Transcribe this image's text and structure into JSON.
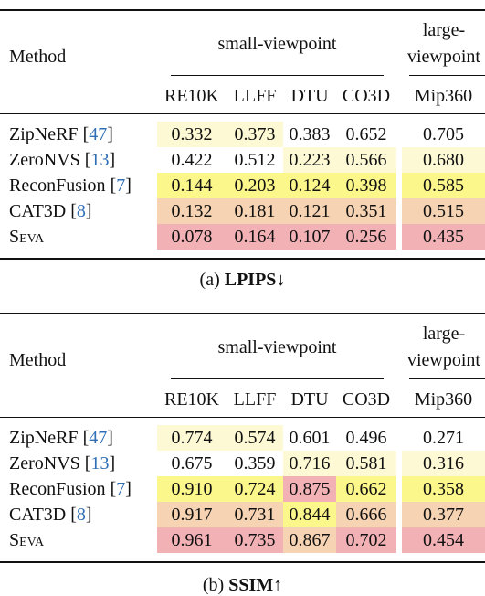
{
  "header": {
    "method": "Method",
    "group_small": "small-viewpoint",
    "group_large_1": "large-",
    "group_large_2": "viewpoint",
    "columns": [
      "RE10K",
      "LLFF",
      "DTU",
      "CO3D",
      "Mip360"
    ]
  },
  "colors": {
    "light": "#fdf9d4",
    "yellow": "#fbf78a",
    "orange": "#f6d3b2",
    "red": "#f2b1b5",
    "none": "#ffffff",
    "ref": "#2f6fb5"
  },
  "tables": [
    {
      "caption_prefix": "(a) ",
      "caption_bold": "LPIPS",
      "caption_arrow": "↓",
      "rows": [
        {
          "name": "ZipNeRF",
          "ref": "47",
          "values": [
            "0.332",
            "0.373",
            "0.383",
            "0.652",
            "0.705"
          ],
          "colors": [
            "light",
            "light",
            "none",
            "none",
            "none"
          ]
        },
        {
          "name": "ZeroNVS",
          "ref": "13",
          "values": [
            "0.422",
            "0.512",
            "0.223",
            "0.566",
            "0.680"
          ],
          "colors": [
            "none",
            "none",
            "light",
            "light",
            "light"
          ]
        },
        {
          "name": "ReconFusion",
          "ref": "7",
          "values": [
            "0.144",
            "0.203",
            "0.124",
            "0.398",
            "0.585"
          ],
          "colors": [
            "yellow",
            "yellow",
            "yellow",
            "yellow",
            "yellow"
          ]
        },
        {
          "name": "CAT3D",
          "ref": "8",
          "values": [
            "0.132",
            "0.181",
            "0.121",
            "0.351",
            "0.515"
          ],
          "colors": [
            "orange",
            "orange",
            "orange",
            "orange",
            "orange"
          ]
        },
        {
          "name": "Seva",
          "ref": "",
          "values": [
            "0.078",
            "0.164",
            "0.107",
            "0.256",
            "0.435"
          ],
          "colors": [
            "red",
            "red",
            "red",
            "red",
            "red"
          ]
        }
      ]
    },
    {
      "caption_prefix": "(b) ",
      "caption_bold": "SSIM",
      "caption_arrow": "↑",
      "rows": [
        {
          "name": "ZipNeRF",
          "ref": "47",
          "values": [
            "0.774",
            "0.574",
            "0.601",
            "0.496",
            "0.271"
          ],
          "colors": [
            "light",
            "light",
            "none",
            "none",
            "none"
          ]
        },
        {
          "name": "ZeroNVS",
          "ref": "13",
          "values": [
            "0.675",
            "0.359",
            "0.716",
            "0.581",
            "0.316"
          ],
          "colors": [
            "none",
            "none",
            "light",
            "light",
            "light"
          ]
        },
        {
          "name": "ReconFusion",
          "ref": "7",
          "values": [
            "0.910",
            "0.724",
            "0.875",
            "0.662",
            "0.358"
          ],
          "colors": [
            "yellow",
            "yellow",
            "red",
            "yellow",
            "yellow"
          ]
        },
        {
          "name": "CAT3D",
          "ref": "8",
          "values": [
            "0.917",
            "0.731",
            "0.844",
            "0.666",
            "0.377"
          ],
          "colors": [
            "orange",
            "orange",
            "yellow",
            "orange",
            "orange"
          ]
        },
        {
          "name": "Seva",
          "ref": "",
          "values": [
            "0.961",
            "0.735",
            "0.867",
            "0.702",
            "0.454"
          ],
          "colors": [
            "red",
            "red",
            "orange",
            "red",
            "red"
          ]
        }
      ]
    }
  ]
}
